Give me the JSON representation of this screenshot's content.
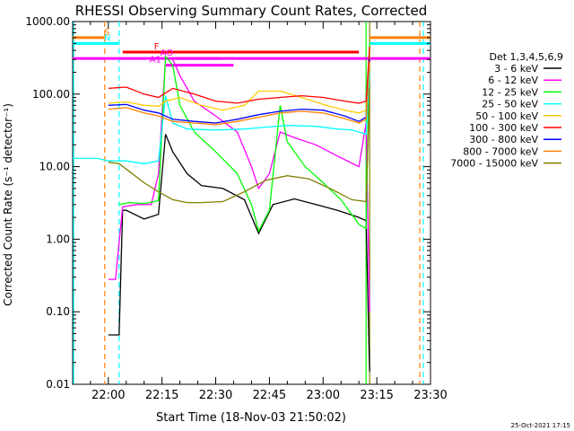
{
  "chart_data": {
    "type": "line",
    "title": "RHESSI Observing Summary Count Rates, Corrected",
    "xlabel": "Start Time (18-Nov-03 21:50:02)",
    "ylabel": "Corrected Count Rate (s⁻¹ detector⁻¹)",
    "y_scale": "log",
    "ylim": [
      0.01,
      1000
    ],
    "xlim": [
      "21:50:02",
      "23:30"
    ],
    "x_ticks": [
      {
        "t": "22:00",
        "label": "22:00"
      },
      {
        "t": "22:15",
        "label": "22:15"
      },
      {
        "t": "22:30",
        "label": "22:30"
      },
      {
        "t": "22:45",
        "label": "22:45"
      },
      {
        "t": "23:00",
        "label": "23:00"
      },
      {
        "t": "23:15",
        "label": "23:15"
      },
      {
        "t": "23:30",
        "label": "23:30"
      }
    ],
    "y_ticks": [
      {
        "v": 1000,
        "label": "1000.00"
      },
      {
        "v": 100,
        "label": "100.00"
      },
      {
        "v": 10,
        "label": "10.00"
      },
      {
        "v": 1,
        "label": "1.00"
      },
      {
        "v": 0.1,
        "label": "0.10"
      },
      {
        "v": 0.01,
        "label": "0.01"
      }
    ],
    "legend_title": "Det 1,3,4,5,6,9",
    "legend_position": "right",
    "series": [
      {
        "name": "3 - 6 keV",
        "color": "#000000",
        "x": [
          "22:00",
          "22:03",
          "22:04",
          "22:05",
          "22:10",
          "22:14",
          "22:16",
          "22:18",
          "22:22",
          "22:26",
          "22:32",
          "22:38",
          "22:42",
          "22:46",
          "22:52",
          "22:58",
          "23:04",
          "23:10",
          "23:12",
          "23:13"
        ],
        "y": [
          0.048,
          0.048,
          2.5,
          2.5,
          1.9,
          2.2,
          28,
          16,
          8,
          5.5,
          5,
          3.5,
          1.2,
          3,
          3.6,
          3,
          2.5,
          2,
          1.8,
          0.015
        ]
      },
      {
        "name": "6 - 12 keV",
        "color": "#ff00ff",
        "x": [
          "22:00",
          "22:02",
          "22:04",
          "22:08",
          "22:12",
          "22:14",
          "22:16",
          "22:18",
          "22:20",
          "22:24",
          "22:30",
          "22:36",
          "22:40",
          "22:42",
          "22:45",
          "22:48",
          "22:52",
          "22:58",
          "23:04",
          "23:10",
          "23:12",
          "23:13"
        ],
        "y": [
          0.28,
          0.28,
          2.8,
          3,
          3,
          8,
          320,
          300,
          180,
          80,
          50,
          30,
          10,
          5,
          8,
          30,
          25,
          20,
          14,
          10,
          40,
          0.1
        ]
      },
      {
        "name": "12 - 25 keV",
        "color": "#00ff00",
        "x": [
          "22:03",
          "22:06",
          "22:10",
          "22:14",
          "22:16",
          "22:18",
          "22:20",
          "22:24",
          "22:30",
          "22:36",
          "22:40",
          "22:42",
          "22:45",
          "22:48",
          "22:50",
          "22:55",
          "23:00",
          "23:05",
          "23:10",
          "23:12",
          "23:13"
        ],
        "y": [
          3,
          3.2,
          3.1,
          3.4,
          330,
          250,
          70,
          30,
          16,
          8,
          3,
          1.3,
          2.5,
          70,
          22,
          10,
          6,
          3.5,
          1.6,
          1.4,
          500
        ]
      },
      {
        "name": "25 - 50 keV",
        "color": "#00ffff",
        "x": [
          "21:50",
          "21:57",
          "22:00",
          "22:05",
          "22:10",
          "22:14",
          "22:16",
          "22:18",
          "22:22",
          "22:30",
          "22:38",
          "22:44",
          "22:50",
          "22:58",
          "23:04",
          "23:08",
          "23:10",
          "23:12",
          "23:13"
        ],
        "y": [
          13,
          13,
          12,
          12,
          11,
          12,
          95,
          40,
          33,
          32,
          33,
          35,
          37,
          36,
          33,
          32,
          30,
          28,
          200
        ]
      },
      {
        "name": "50 - 100 keV",
        "color": "#ffcc00",
        "x": [
          "22:00",
          "22:05",
          "22:10",
          "22:14",
          "22:16",
          "22:20",
          "22:26",
          "22:32",
          "22:38",
          "22:42",
          "22:48",
          "22:54",
          "23:00",
          "23:06",
          "23:10",
          "23:12",
          "23:13"
        ],
        "y": [
          75,
          78,
          70,
          68,
          80,
          90,
          70,
          60,
          70,
          110,
          110,
          90,
          72,
          60,
          55,
          60,
          450
        ]
      },
      {
        "name": "100 - 300 keV",
        "color": "#ff0000",
        "x": [
          "22:00",
          "22:05",
          "22:10",
          "22:14",
          "22:18",
          "22:24",
          "22:30",
          "22:36",
          "22:42",
          "22:48",
          "22:54",
          "23:00",
          "23:06",
          "23:10",
          "23:12",
          "23:13"
        ],
        "y": [
          120,
          125,
          100,
          90,
          120,
          100,
          80,
          75,
          85,
          90,
          95,
          90,
          80,
          75,
          80,
          450
        ]
      },
      {
        "name": "300 - 800 keV",
        "color": "#0000ff",
        "x": [
          "22:00",
          "22:05",
          "22:10",
          "22:14",
          "22:18",
          "22:24",
          "22:30",
          "22:36",
          "22:42",
          "22:48",
          "22:54",
          "23:00",
          "23:06",
          "23:10",
          "23:12",
          "23:13"
        ],
        "y": [
          70,
          72,
          60,
          55,
          45,
          42,
          40,
          45,
          52,
          58,
          62,
          60,
          50,
          42,
          48,
          300
        ]
      },
      {
        "name": "800 - 7000 keV",
        "color": "#ff8000",
        "x": [
          "22:00",
          "22:05",
          "22:10",
          "22:14",
          "22:18",
          "22:24",
          "22:30",
          "22:36",
          "22:42",
          "22:48",
          "22:54",
          "23:00",
          "23:06",
          "23:10",
          "23:12",
          "23:13"
        ],
        "y": [
          62,
          65,
          55,
          50,
          42,
          40,
          38,
          42,
          48,
          55,
          58,
          55,
          46,
          40,
          45,
          280
        ]
      },
      {
        "name": "7000 - 15000 keV",
        "color": "#808000",
        "x": [
          "22:00",
          "22:03",
          "22:06",
          "22:10",
          "22:14",
          "22:18",
          "22:22",
          "22:26",
          "22:32",
          "22:38",
          "22:44",
          "22:50",
          "22:56",
          "23:02",
          "23:08",
          "23:12",
          "23:13"
        ],
        "y": [
          11.5,
          11,
          8.5,
          6,
          4.5,
          3.5,
          3.2,
          3.2,
          3.3,
          4.5,
          6.5,
          7.5,
          6.8,
          5,
          3.5,
          3.3,
          120
        ]
      }
    ],
    "vertical_lines": [
      {
        "t": "21:50:02",
        "color": "#00ffff",
        "style": "solid"
      },
      {
        "t": "21:59",
        "color": "#ff8000",
        "style": "dashed"
      },
      {
        "t": "22:03",
        "color": "#00ffff",
        "style": "dashed"
      },
      {
        "t": "23:12",
        "color": "#00ff00",
        "style": "solid"
      },
      {
        "t": "23:13",
        "color": "#808000",
        "style": "solid"
      },
      {
        "t": "23:27",
        "color": "#ff8000",
        "style": "dashed"
      },
      {
        "t": "23:28",
        "color": "#00ffff",
        "style": "dashed"
      }
    ],
    "state_bars": [
      {
        "label": "S",
        "color": "#ff8000",
        "t_start": "21:50:02",
        "t_end": "21:59",
        "level": 600
      },
      {
        "label": "",
        "color": "#ff8000",
        "t_start": "23:13",
        "t_end": "23:30",
        "level": 600
      },
      {
        "label": "N",
        "color": "#00ffff",
        "t_start": "21:50:02",
        "t_end": "22:03",
        "level": 500
      },
      {
        "label": "",
        "color": "#00ffff",
        "t_start": "23:13",
        "t_end": "23:30",
        "level": 500
      },
      {
        "label": "F",
        "color": "#ff0000",
        "t_start": "22:04",
        "t_end": "23:10",
        "level": 380
      },
      {
        "label": "",
        "color": "#ff00ff",
        "t_start": "21:50:02",
        "t_end": "23:30",
        "level": 310
      },
      {
        "label": "A1",
        "color": "#ff00ff",
        "t_start": "22:16",
        "t_end": "22:35",
        "level": 250
      },
      {
        "label": "AO",
        "color": "#ff00ff",
        "t_start": "22:19",
        "t_end": "22:31",
        "level": 310
      }
    ],
    "footer_date": "25-Oct-2021 17:15"
  }
}
